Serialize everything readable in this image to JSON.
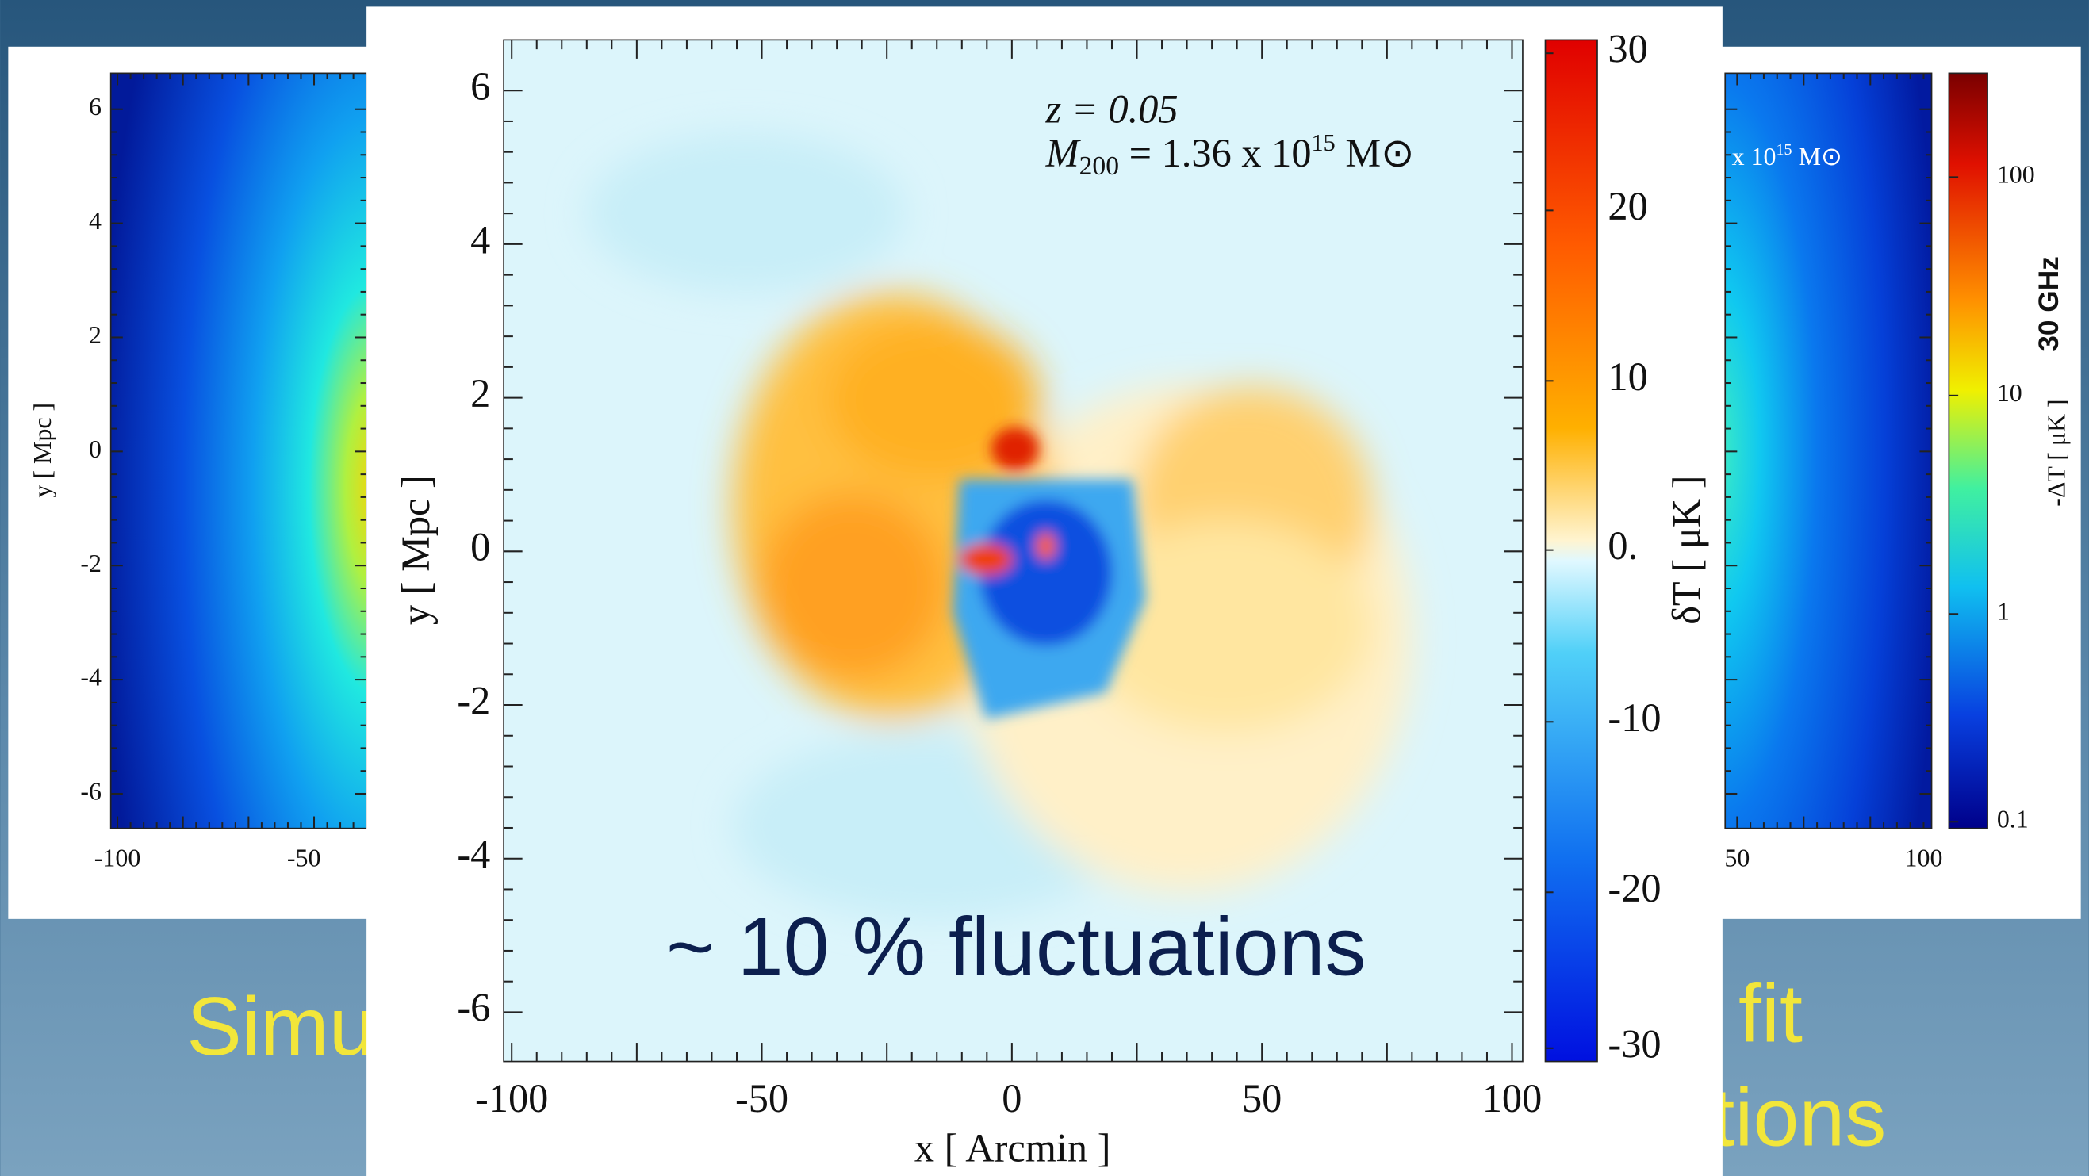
{
  "slide_text": [
    "Simu",
    "fit",
    "tions"
  ],
  "left_panel": {
    "y_axis_label": "y [ Mpc ]",
    "y_ticks": [
      "6",
      "4",
      "2",
      "0",
      "-2",
      "-4",
      "-6"
    ],
    "x_ticks": [
      "-100",
      "-50"
    ]
  },
  "right_panel": {
    "annotation_mass": [
      "x 10",
      "15",
      " M⊙"
    ],
    "x_ticks": [
      "50",
      "100"
    ],
    "colorbar_ticks": [
      "100",
      "10",
      "1",
      "0.1"
    ],
    "colorbar_label": "-ΔT [ μK ]",
    "frequency": "30 GHz"
  },
  "center_panel": {
    "annotation_z": "z = 0.05",
    "annotation_mass": [
      "M",
      "200",
      " = 1.36 x 10",
      "15",
      " M⊙"
    ],
    "y_axis_label": "y [ Mpc ]",
    "x_axis_label": "x [ Arcmin ]",
    "y_ticks": [
      "6",
      "4",
      "2",
      "0",
      "-2",
      "-4",
      "-6"
    ],
    "x_ticks": [
      "-100",
      "-50",
      "0",
      "50",
      "100"
    ],
    "colorbar_ticks": [
      "30",
      "20",
      "10",
      "0.",
      "-10",
      "-20",
      "-30"
    ],
    "colorbar_label": "δT [ μK ]",
    "overlay_text": "~ 10 % fluctuations"
  }
}
